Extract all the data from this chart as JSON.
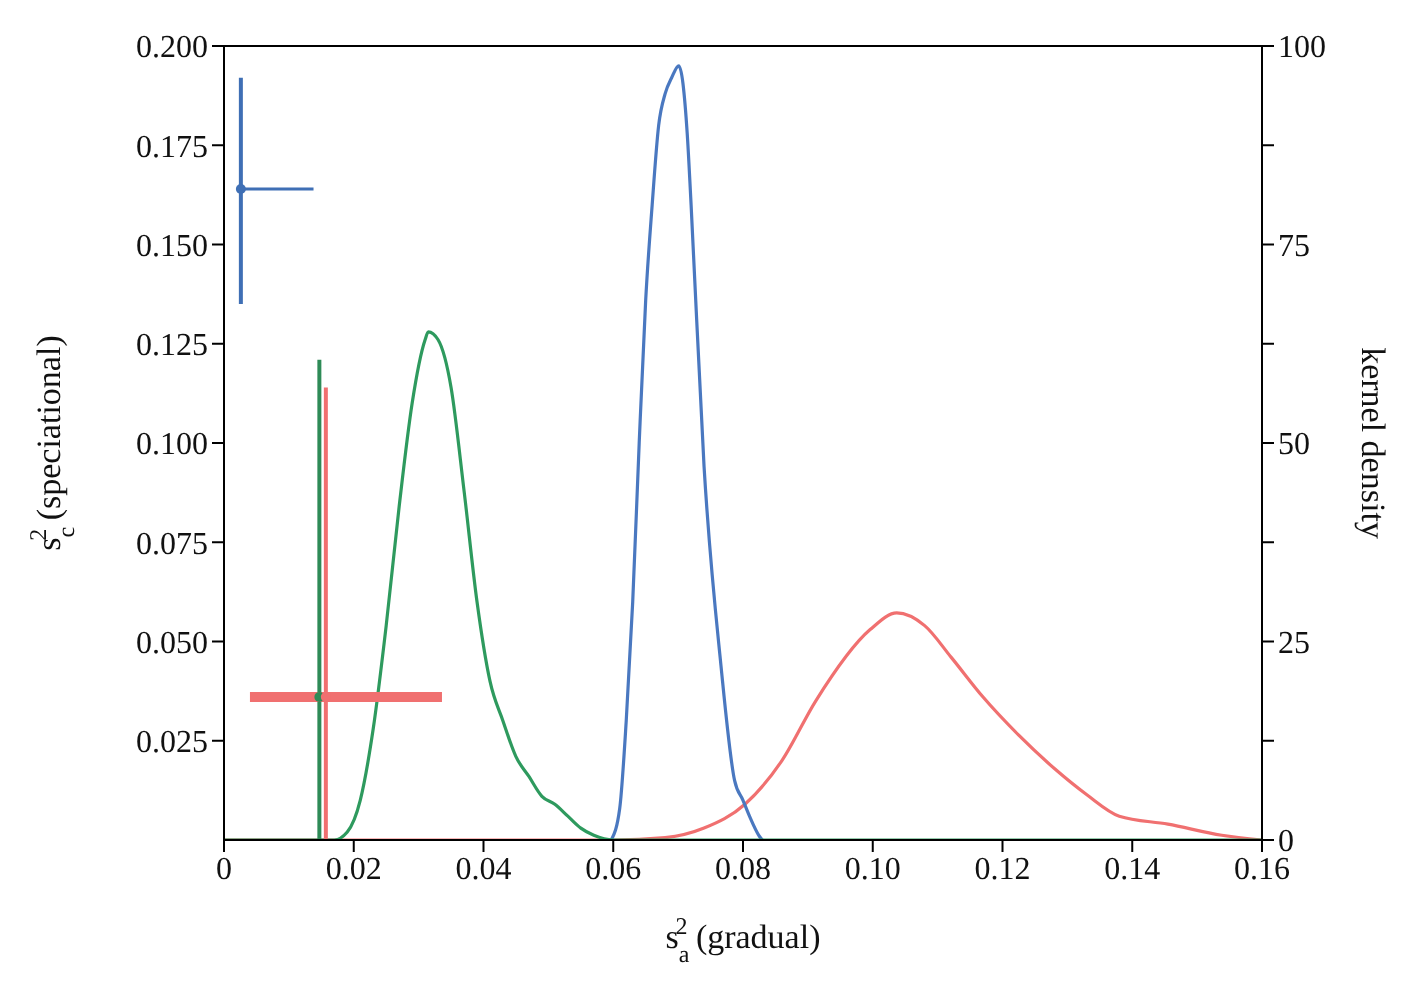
{
  "chart_data": {
    "type": "line",
    "xlabel": "s$_{a}$$^{2}$ (gradual)",
    "ylabel": "s$_{c}$$^{2}$ (speciational)",
    "y2label": "kernel density",
    "xlim": [
      0,
      0.16
    ],
    "xticks": [
      0,
      0.02,
      0.04,
      0.06,
      0.08,
      {
        "value": 0.1,
        "label": "0.10"
      },
      0.12,
      0.14,
      0.16
    ],
    "ylim": [
      0,
      0.2
    ],
    "yticks": [
      {
        "value": 0.025,
        "label": "0.025"
      },
      {
        "value": 0.05,
        "label": "0.050"
      },
      {
        "value": 0.075,
        "label": "0.075"
      },
      {
        "value": 0.1,
        "label": "0.100"
      },
      {
        "value": 0.125,
        "label": "0.125"
      },
      {
        "value": 0.15,
        "label": "0.150"
      },
      {
        "value": 0.175,
        "label": "0.175"
      },
      {
        "value": 0.2,
        "label": "0.200"
      }
    ],
    "y2lim": [
      0,
      100
    ],
    "y2ticks": [
      0,
      {
        "value": 12.5,
        "label": null
      },
      25,
      {
        "value": 37.5,
        "label": null
      },
      50,
      {
        "value": 62.5,
        "label": null
      },
      75,
      {
        "value": 87.5,
        "label": null
      },
      100
    ],
    "grid": false,
    "legend": false,
    "series": [
      {
        "axis": "y2",
        "color": "#f07070",
        "x": [
          0,
          0.06,
          0.068,
          0.074,
          0.0803,
          0.086,
          0.0912,
          0.0996,
          0.1037,
          0.108,
          0.1121,
          0.117,
          0.1225,
          0.128,
          0.133,
          0.138,
          0.1455,
          0.1538,
          0.16
        ],
        "values": [
          0,
          0,
          0.3,
          1.5,
          4.5,
          10,
          17.5,
          26.5,
          28.6,
          27,
          23,
          18,
          13.2,
          9,
          5.7,
          3,
          2,
          0.6,
          0
        ]
      },
      {
        "axis": "y2",
        "color": "#4a78c0",
        "x": [
          0.0597,
          0.061,
          0.062,
          0.063,
          0.064,
          0.065,
          0.066,
          0.067,
          0.068,
          0.069,
          0.0701,
          0.0714,
          0.072,
          0.074,
          0.0766,
          0.0787,
          0.08,
          0.081,
          0.0825,
          0.083
        ],
        "values": [
          0,
          4,
          15,
          30,
          50,
          68,
          80,
          90,
          94,
          96,
          97.5,
          89,
          80,
          47,
          22,
          7.5,
          5,
          3,
          0.5,
          0
        ]
      },
      {
        "axis": "y2",
        "color": "#2e9a5e",
        "x": [
          0,
          0.017,
          0.019,
          0.021,
          0.023,
          0.025,
          0.027,
          0.029,
          0.031,
          0.0315,
          0.033,
          0.035,
          0.037,
          0.039,
          0.041,
          0.043,
          0.045,
          0.047,
          0.049,
          0.051,
          0.053,
          0.055,
          0.057,
          0.06,
          0.16
        ],
        "values": [
          0,
          0,
          1,
          5,
          14,
          27,
          42,
          55,
          63,
          64,
          63,
          57,
          44,
          30,
          20,
          15,
          10.5,
          8,
          5.5,
          4.5,
          3,
          1.5,
          0.6,
          0,
          0
        ]
      },
      {
        "type": "scatter",
        "color": "#3f6fb5",
        "marker": "circle",
        "x": [
          0.0026
        ],
        "values": [
          0.164
        ],
        "errors": [
          [
            0.135,
            0.192
          ]
        ],
        "xerrors": [
          [
            0.0022,
            0.0138
          ]
        ]
      },
      {
        "type": "scatter",
        "color": "#2e8b57",
        "marker": "circle",
        "x": [
          0.0147
        ],
        "values": [
          0.036
        ],
        "errors": [
          [
            0,
            0.121
          ]
        ]
      },
      {
        "type": "scatter",
        "color": "#f07070",
        "marker": "circle",
        "x": [
          0.0157
        ],
        "values": [
          0.036
        ],
        "errors": [
          [
            0,
            0.114
          ]
        ],
        "xerrors": [
          [
            0.004,
            0.0336
          ]
        ]
      }
    ]
  }
}
